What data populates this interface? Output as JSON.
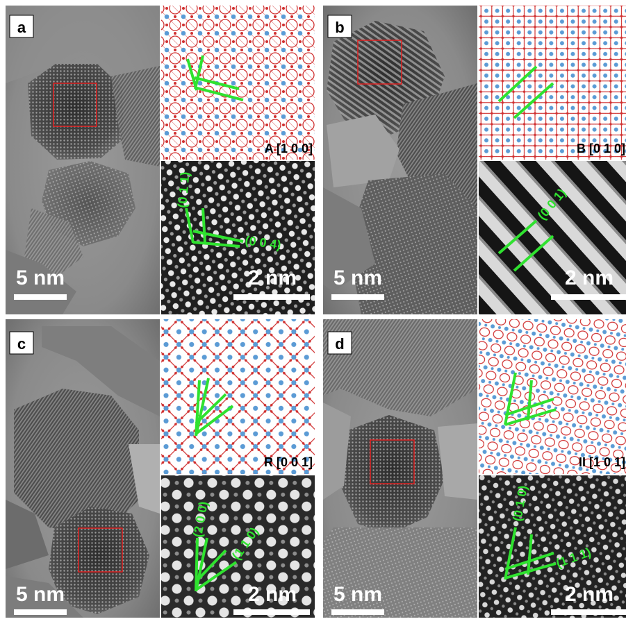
{
  "panels": [
    {
      "letter": "a",
      "scale_bar_large": "5 nm",
      "model_label": "A [1 0 0]",
      "hrtem_scale": "2 nm",
      "plane_labels": [
        "(0 1 1)",
        "(0 0 4)"
      ]
    },
    {
      "letter": "b",
      "scale_bar_large": "5 nm",
      "model_label": "B [0 1 0]",
      "hrtem_scale": "2 nm",
      "plane_labels": [
        "(0 0 1)"
      ]
    },
    {
      "letter": "c",
      "scale_bar_large": "5 nm",
      "model_label": "R [0 0 1]",
      "hrtem_scale": "2 nm",
      "plane_labels": [
        "(2 0 0)",
        "(1 1 0)"
      ]
    },
    {
      "letter": "d",
      "scale_bar_large": "5 nm",
      "model_label": "II [1 0 1]",
      "hrtem_scale": "2 nm",
      "plane_labels": [
        "(0 1 0)",
        "(1 1 1)"
      ]
    }
  ],
  "colors": {
    "annotation_green": "#2fe22f",
    "selection_box": "#e02020",
    "atom_blue": "#5b9bd5",
    "atom_red": "#d03030"
  }
}
